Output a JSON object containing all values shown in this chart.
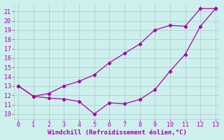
{
  "line1_x": [
    0,
    1,
    2,
    3,
    4,
    5,
    6,
    7,
    8,
    9,
    10,
    11,
    12,
    13
  ],
  "line1_y": [
    13,
    11.9,
    11.7,
    11.6,
    11.35,
    10.0,
    11.2,
    11.1,
    11.55,
    12.6,
    14.6,
    16.4,
    19.4,
    21.3
  ],
  "line2_x": [
    0,
    1,
    2,
    3,
    4,
    5,
    6,
    7,
    8,
    9,
    10,
    11,
    12,
    13
  ],
  "line2_y": [
    13,
    11.9,
    12.2,
    13.0,
    13.5,
    14.2,
    15.5,
    16.5,
    17.5,
    19.0,
    19.5,
    19.4,
    21.3,
    21.3
  ],
  "line_color": "#aa00aa",
  "xlim": [
    -0.3,
    13.3
  ],
  "ylim": [
    9.5,
    21.8
  ],
  "yticks": [
    10,
    11,
    12,
    13,
    14,
    15,
    16,
    17,
    18,
    19,
    20,
    21
  ],
  "xticks": [
    0,
    1,
    2,
    3,
    4,
    5,
    6,
    7,
    8,
    9,
    10,
    11,
    12,
    13
  ],
  "xlabel": "Windchill (Refroidissement éolien,°C)",
  "bg_color": "#cdf0ee",
  "grid_color": "#a8c8c8",
  "figsize": [
    3.2,
    2.0
  ],
  "dpi": 100
}
